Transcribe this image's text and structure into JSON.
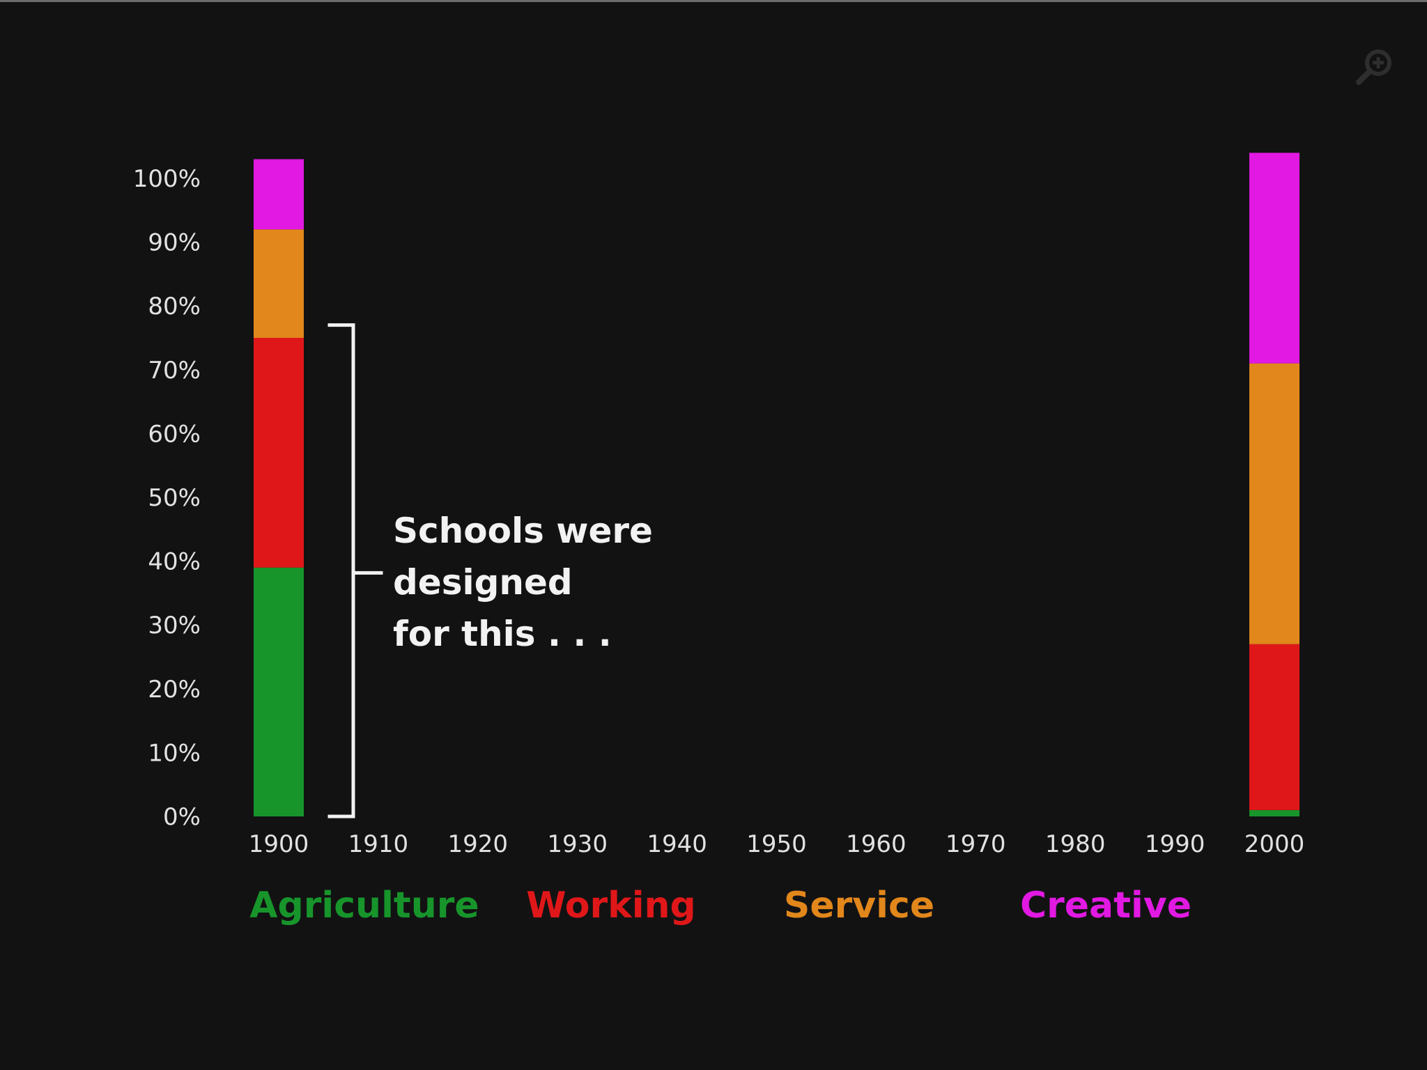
{
  "controls": {
    "zoom_icon": "zoom-in-icon"
  },
  "colors": {
    "background": "#121213",
    "axis_text": "#e2e2e2",
    "annotation_text": "#f2f2f2",
    "bracket": "#f2f2f2",
    "zoom_icon": "#2e2e2e"
  },
  "chart_data": {
    "type": "bar",
    "stacked": true,
    "title": "",
    "xlabel": "",
    "ylabel": "",
    "x": [
      "1900",
      "1910",
      "1920",
      "1930",
      "1940",
      "1950",
      "1960",
      "1970",
      "1980",
      "1990",
      "2000"
    ],
    "yticks": [
      "0%",
      "10%",
      "20%",
      "30%",
      "40%",
      "50%",
      "60%",
      "70%",
      "80%",
      "90%",
      "100%"
    ],
    "ylim": [
      0,
      100
    ],
    "grid": false,
    "legend_position": "bottom",
    "series": [
      {
        "name": "Agriculture",
        "color": "#17952b",
        "values": [
          39,
          null,
          null,
          null,
          null,
          null,
          null,
          null,
          null,
          null,
          1
        ]
      },
      {
        "name": "Working",
        "color": "#e01719",
        "values": [
          36,
          null,
          null,
          null,
          null,
          null,
          null,
          null,
          null,
          null,
          26
        ]
      },
      {
        "name": "Service",
        "color": "#e2871b",
        "values": [
          17,
          null,
          null,
          null,
          null,
          null,
          null,
          null,
          null,
          null,
          44
        ]
      },
      {
        "name": "Creative",
        "color": "#e119e2",
        "values": [
          11,
          null,
          null,
          null,
          null,
          null,
          null,
          null,
          null,
          null,
          33
        ]
      }
    ],
    "annotation": {
      "lines": [
        "Schools were",
        "designed",
        "for this . . ."
      ],
      "bracket_from": 0,
      "bracket_to": 77
    }
  }
}
